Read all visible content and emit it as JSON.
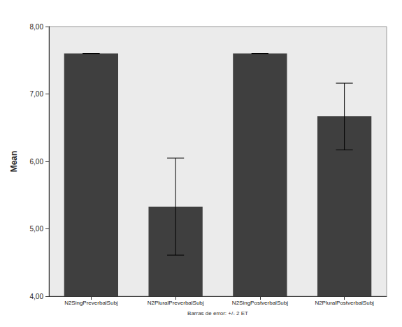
{
  "chart_data": {
    "type": "bar",
    "categories": [
      "N2SingPreverbalSubj",
      "N2PluralPreverbalSubj",
      "N2SingPostverbalSubj",
      "N2PluralPostverbalSubj"
    ],
    "values": [
      7.6,
      5.33,
      7.6,
      6.67
    ],
    "errors": [
      [
        7.6,
        7.6
      ],
      [
        4.61,
        6.05
      ],
      [
        7.6,
        7.6
      ],
      [
        6.17,
        7.16
      ]
    ],
    "color": "#3f3f3f",
    "y_label": "Mean",
    "x_label": "Barras de error: +/- 2 ET",
    "ylim": [
      4,
      8
    ],
    "yticks": [
      {
        "value": 4,
        "label": "4,00"
      },
      {
        "value": 5,
        "label": "5,00"
      },
      {
        "value": 6,
        "label": "6,00"
      },
      {
        "value": 7,
        "label": "7,00"
      },
      {
        "value": 8,
        "label": "8,00"
      }
    ],
    "grid": false
  }
}
